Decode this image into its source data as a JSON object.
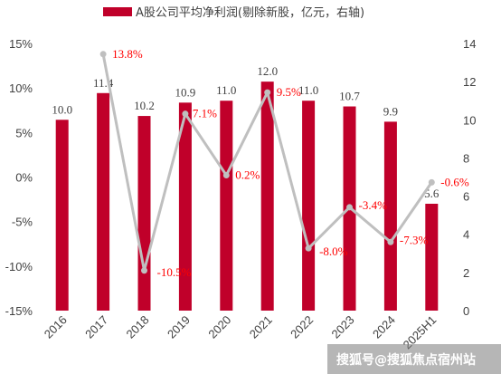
{
  "chart_data": {
    "type": "bar",
    "categories": [
      "2016",
      "2017",
      "2018",
      "2019",
      "2020",
      "2021",
      "2022",
      "2023",
      "2024",
      "2025H1"
    ],
    "series": [
      {
        "name": "A股公司平均净利润(剔除新股，亿元，右轴)",
        "type": "bar",
        "axis": "right",
        "values": [
          10.0,
          11.4,
          10.2,
          10.9,
          11.0,
          12.0,
          11.0,
          10.7,
          9.9,
          5.6
        ],
        "labels": [
          "10.0",
          "11.4",
          "10.2",
          "10.9",
          "11.0",
          "12.0",
          "11.0",
          "10.7",
          "9.9",
          "5.6"
        ],
        "color": "#c0002a"
      },
      {
        "type": "line",
        "axis": "left",
        "values": [
          null,
          13.8,
          -10.5,
          7.1,
          0.2,
          9.5,
          -8.0,
          -3.4,
          -7.3,
          -0.6
        ],
        "labels": [
          "",
          "13.8%",
          "-10.5%",
          "7.1%",
          "0.2%",
          "9.5%",
          "-8.0%",
          "-3.4%",
          "-7.3%",
          "-0.6%"
        ],
        "color": "#bfbfbf",
        "label_color": "#ff0000"
      }
    ],
    "left_axis": {
      "min": -15,
      "max": 15,
      "ticks": [
        "15%",
        "10%",
        "5%",
        "0%",
        "-5%",
        "-10%",
        "-15%"
      ]
    },
    "right_axis": {
      "min": 0,
      "max": 14,
      "ticks": [
        "14",
        "12",
        "10",
        "8",
        "6",
        "4",
        "2",
        "0"
      ]
    },
    "legend_label": "A股公司平均净利润(剔除新股，亿元，右轴)",
    "legend_position": "top",
    "grid": false
  },
  "watermark": "搜狐号@搜狐焦点宿州站"
}
